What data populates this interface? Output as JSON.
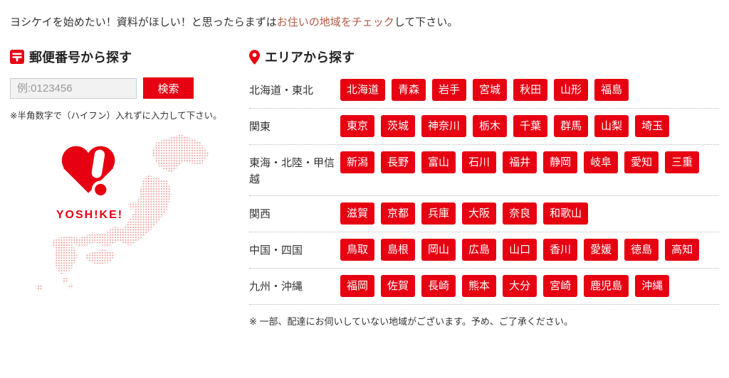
{
  "intro": {
    "prefix": "ヨシケイを始めたい！資料がほしい！と思ったらまずは",
    "highlight": "お住いの地域をチェック",
    "suffix": "して下さい。"
  },
  "postal_section": {
    "title": "郵便番号から探す",
    "input": {
      "value": "",
      "placeholder": "例:0123456"
    },
    "search_button": "検索",
    "note": "※半角数字で（ハイフン）入れずに入力して下さい。",
    "logo_text": "YOSH!KE!"
  },
  "area_section": {
    "title": "エリアから探す",
    "regions": [
      {
        "label": "北海道・東北",
        "prefectures": [
          "北海道",
          "青森",
          "岩手",
          "宮城",
          "秋田",
          "山形",
          "福島"
        ]
      },
      {
        "label": "関東",
        "prefectures": [
          "東京",
          "茨城",
          "神奈川",
          "栃木",
          "千葉",
          "群馬",
          "山梨",
          "埼玉"
        ]
      },
      {
        "label": "東海・北陸・甲信越",
        "prefectures": [
          "新潟",
          "長野",
          "富山",
          "石川",
          "福井",
          "静岡",
          "岐阜",
          "愛知",
          "三重"
        ]
      },
      {
        "label": "関西",
        "prefectures": [
          "滋賀",
          "京都",
          "兵庫",
          "大阪",
          "奈良",
          "和歌山"
        ]
      },
      {
        "label": "中国・四国",
        "prefectures": [
          "鳥取",
          "島根",
          "岡山",
          "広島",
          "山口",
          "香川",
          "愛媛",
          "徳島",
          "高知"
        ]
      },
      {
        "label": "九州・沖縄",
        "prefectures": [
          "福岡",
          "佐賀",
          "長崎",
          "熊本",
          "大分",
          "宮崎",
          "鹿児島",
          "沖縄"
        ]
      }
    ],
    "note": "※ 一部、配達にお伺いしていない地域がございます。予め、ご了承ください。"
  },
  "icons": {
    "postal": "postal-mark-icon",
    "area": "map-pin-icon"
  },
  "colors": {
    "brand_red": "#e60012",
    "highlight_text": "#b05a41",
    "body_text": "#333333",
    "map_dot_pink": "#e89a93",
    "input_bg": "#f2f2f2",
    "divider": "#bbbbbb"
  }
}
